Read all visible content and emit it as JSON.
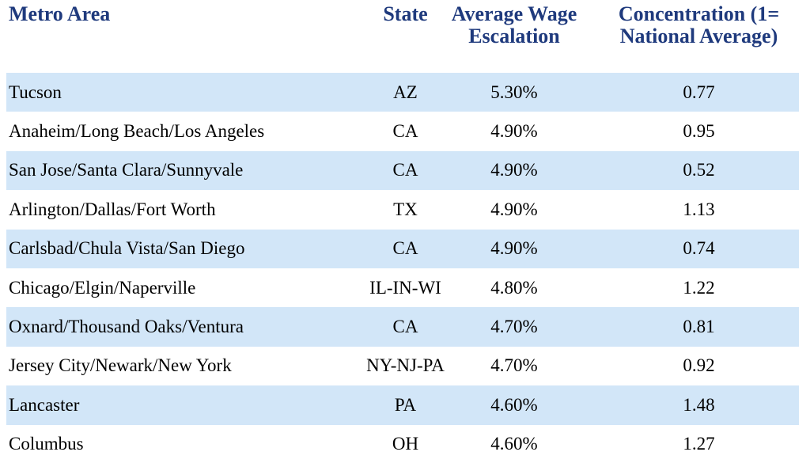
{
  "chart_data": {
    "type": "table",
    "columns": [
      {
        "label": "Metro Area",
        "align": "left"
      },
      {
        "label": "State",
        "align": "center"
      },
      {
        "label": "Average Wage Escalation",
        "align": "center"
      },
      {
        "label": "Concentration (1= National Average)",
        "align": "center"
      }
    ],
    "rows": [
      [
        "Tucson",
        "AZ",
        "5.30%",
        "0.77"
      ],
      [
        "Anaheim/Long Beach/Los Angeles",
        "CA",
        "4.90%",
        "0.95"
      ],
      [
        "San Jose/Santa Clara/Sunnyvale",
        "CA",
        "4.90%",
        "0.52"
      ],
      [
        "Arlington/Dallas/Fort Worth",
        "TX",
        "4.90%",
        "1.13"
      ],
      [
        "Carlsbad/Chula Vista/San Diego",
        "CA",
        "4.90%",
        "0.74"
      ],
      [
        "Chicago/Elgin/Naperville",
        "IL-IN-WI",
        "4.80%",
        "1.22"
      ],
      [
        "Oxnard/Thousand Oaks/Ventura",
        "CA",
        "4.70%",
        "0.81"
      ],
      [
        "Jersey City/Newark/New York",
        "NY-NJ-PA",
        "4.70%",
        "0.92"
      ],
      [
        "Lancaster",
        "PA",
        "4.60%",
        "1.48"
      ],
      [
        "Columbus",
        "OH",
        "4.60%",
        "1.27"
      ]
    ],
    "layout": {
      "banded_rows": "odd rows highlighted",
      "gridlines": false
    }
  },
  "colors": {
    "row_band": "#D2E6F8",
    "header_text": "#1F3A7D",
    "body_text": "#000000",
    "background": "#FFFFFF"
  }
}
